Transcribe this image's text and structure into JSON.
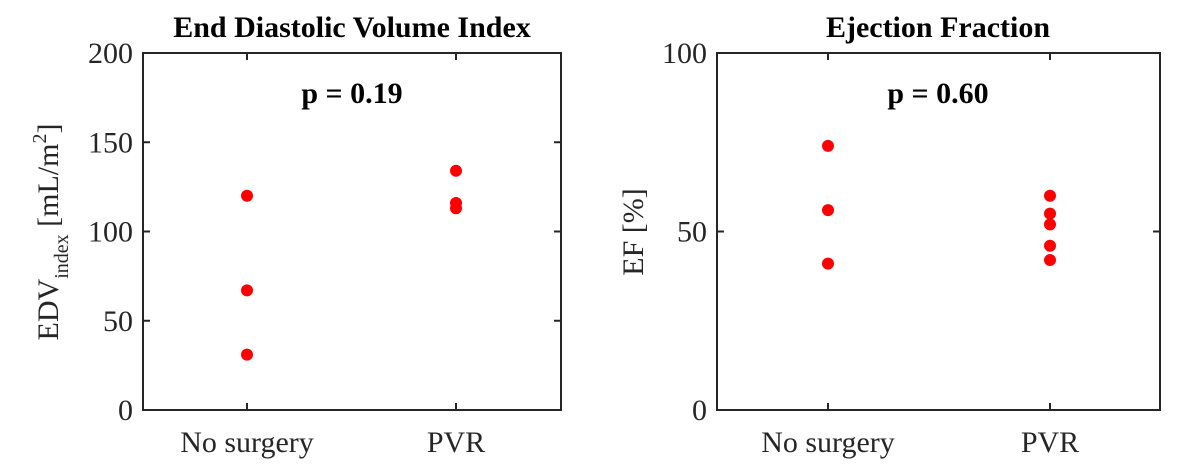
{
  "chart_data": [
    {
      "type": "scatter",
      "title": "End Diastolic Volume Index",
      "annotation": "p = 0.19",
      "ylabel": {
        "main": "EDV",
        "subscript": "index",
        "unit_open": " [mL/m",
        "superscript": "2",
        "unit_close": "]"
      },
      "categories": [
        "No surgery",
        "PVR"
      ],
      "ylim": [
        0,
        200
      ],
      "yticks": [
        0,
        50,
        100,
        150,
        200
      ],
      "marker_color": "#ff0000",
      "series": [
        {
          "values": [
            {
              "category": "No surgery",
              "y": 120
            },
            {
              "category": "No surgery",
              "y": 67
            },
            {
              "category": "No surgery",
              "y": 31
            },
            {
              "category": "PVR",
              "y": 134
            },
            {
              "category": "PVR",
              "y": 116
            },
            {
              "category": "PVR",
              "y": 113
            }
          ]
        }
      ]
    },
    {
      "type": "scatter",
      "title": "Ejection Fraction",
      "annotation": "p = 0.60",
      "ylabel": {
        "main": "EF [%]"
      },
      "categories": [
        "No surgery",
        "PVR"
      ],
      "ylim": [
        0,
        100
      ],
      "yticks": [
        0,
        50,
        100
      ],
      "marker_color": "#ff0000",
      "series": [
        {
          "values": [
            {
              "category": "No surgery",
              "y": 74
            },
            {
              "category": "No surgery",
              "y": 56
            },
            {
              "category": "No surgery",
              "y": 41
            },
            {
              "category": "PVR",
              "y": 60
            },
            {
              "category": "PVR",
              "y": 55
            },
            {
              "category": "PVR",
              "y": 52
            },
            {
              "category": "PVR",
              "y": 46
            },
            {
              "category": "PVR",
              "y": 42
            }
          ]
        }
      ]
    }
  ]
}
